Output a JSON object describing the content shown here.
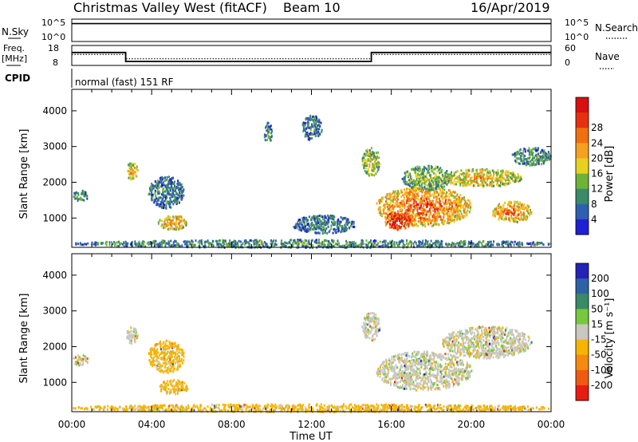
{
  "header": {
    "station": "Christmas Valley West (fitACF)",
    "beam": "Beam 10",
    "date": "16/Apr/2019"
  },
  "param_panels": {
    "nsky_label": "N.Sky",
    "nsky_ticks": [
      "10^5",
      "10^0"
    ],
    "nsearch_label": "N.Search",
    "nsearch_ticks": [
      "10^5",
      "10^0"
    ],
    "freq_label_1": "Freq.",
    "freq_label_2": "[MHz]",
    "freq_ticks": [
      "18",
      "8"
    ],
    "nave_label": "Nave",
    "nave_ticks": [
      "60",
      "0"
    ],
    "cpid_label": "CPID",
    "cpid_text": "normal (fast) 151 RF"
  },
  "axes": {
    "ylabel": "Slant Range [km]",
    "yticks": [
      "1000",
      "2000",
      "3000",
      "4000"
    ],
    "xticks": [
      "00:00",
      "04:00",
      "08:00",
      "12:00",
      "16:00",
      "20:00",
      "00:00"
    ],
    "xlabel": "Time UT"
  },
  "colorbars": {
    "power": {
      "label": "Power [dB]",
      "ticks": [
        "4",
        "8",
        "12",
        "16",
        "20",
        "24",
        "28"
      ],
      "colors": [
        "#1f1fd6",
        "#2f5fb0",
        "#3a8a6a",
        "#6fb23a",
        "#e8d020",
        "#f4a020",
        "#f07010",
        "#e83010",
        "#d81010"
      ]
    },
    "velocity": {
      "label": "Velocity [m s⁻¹]",
      "ticks": [
        "200",
        "100",
        "50",
        "15",
        "-15",
        "-50",
        "-100",
        "-200"
      ],
      "colors": [
        "#2323b8",
        "#2e62a6",
        "#3a8a68",
        "#77c83e",
        "#c8c8c0",
        "#f6b400",
        "#f48a10",
        "#f05a10",
        "#e81c10"
      ]
    }
  },
  "chart_data": [
    {
      "type": "line",
      "title": "N.Sky / N.Search",
      "x_range_hours": [
        0,
        24
      ],
      "series": [
        {
          "name": "N.Sky",
          "x": [
            0,
            24
          ],
          "y": [
            10000,
            10000
          ]
        }
      ]
    },
    {
      "type": "line",
      "title": "Freq. / Nave",
      "x_range_hours": [
        0,
        24
      ],
      "series": [
        {
          "name": "Freq. [MHz]",
          "x": [
            0,
            2.7,
            2.7,
            15,
            15,
            24
          ],
          "y": [
            14.5,
            14.5,
            10,
            10,
            14.5,
            14.5
          ]
        },
        {
          "name": "Nave",
          "x": [
            0,
            2.7,
            2.7,
            15,
            15,
            24
          ],
          "y": [
            33,
            33,
            20,
            20,
            33,
            33
          ]
        }
      ]
    },
    {
      "type": "heatmap",
      "title": "Power [dB]",
      "x_range_hours": [
        0,
        24
      ],
      "ylim": [
        180,
        4600
      ],
      "grid": false,
      "scatter_regions": [
        {
          "t": [
            0.0,
            0.8
          ],
          "r": [
            1500,
            1800
          ],
          "level": 0.3
        },
        {
          "t": [
            2.7,
            3.3
          ],
          "r": [
            2100,
            2600
          ],
          "level": 0.55
        },
        {
          "t": [
            3.8,
            5.6
          ],
          "r": [
            1300,
            2200
          ],
          "level": 0.25
        },
        {
          "t": [
            4.3,
            5.8
          ],
          "r": [
            700,
            1100
          ],
          "level": 0.6
        },
        {
          "t": [
            9.6,
            10.0
          ],
          "r": [
            3100,
            3700
          ],
          "level": 0.3
        },
        {
          "t": [
            11.5,
            12.5
          ],
          "r": [
            3200,
            3900
          ],
          "level": 0.25
        },
        {
          "t": [
            11.0,
            14.2
          ],
          "r": [
            600,
            1100
          ],
          "level": 0.25
        },
        {
          "t": [
            14.5,
            15.4
          ],
          "r": [
            2200,
            3000
          ],
          "level": 0.45
        },
        {
          "t": [
            15.2,
            20.0
          ],
          "r": [
            800,
            1900
          ],
          "level": 0.7
        },
        {
          "t": [
            15.6,
            17.0
          ],
          "r": [
            700,
            1200
          ],
          "level": 0.95
        },
        {
          "t": [
            16.5,
            19.0
          ],
          "r": [
            1800,
            2500
          ],
          "level": 0.4
        },
        {
          "t": [
            18.5,
            22.5
          ],
          "r": [
            1900,
            2400
          ],
          "level": 0.55
        },
        {
          "t": [
            22.0,
            24.0
          ],
          "r": [
            2500,
            3000
          ],
          "level": 0.3
        },
        {
          "t": [
            21.0,
            23.0
          ],
          "r": [
            900,
            1500
          ],
          "level": 0.65
        },
        {
          "t": [
            0.0,
            24.0
          ],
          "r": [
            200,
            420
          ],
          "level": 0.3
        }
      ]
    },
    {
      "type": "heatmap",
      "title": "Velocity [m s⁻¹]",
      "x_range_hours": [
        0,
        24
      ],
      "ylim": [
        180,
        4600
      ],
      "grid": false,
      "scatter_regions": [
        {
          "t": [
            0.0,
            0.8
          ],
          "r": [
            1500,
            1800
          ],
          "velocity": 0
        },
        {
          "t": [
            2.7,
            3.3
          ],
          "r": [
            2100,
            2600
          ],
          "velocity": 0
        },
        {
          "t": [
            3.8,
            5.6
          ],
          "r": [
            1300,
            2200
          ],
          "velocity": -30
        },
        {
          "t": [
            4.3,
            5.8
          ],
          "r": [
            700,
            1100
          ],
          "velocity": -30
        },
        {
          "t": [
            14.5,
            15.4
          ],
          "r": [
            2200,
            3000
          ],
          "velocity": 0
        },
        {
          "t": [
            15.2,
            20.0
          ],
          "r": [
            800,
            1900
          ],
          "velocity": 0
        },
        {
          "t": [
            18.5,
            23.0
          ],
          "r": [
            1700,
            2600
          ],
          "velocity": 0
        },
        {
          "t": [
            0.0,
            24.0
          ],
          "r": [
            200,
            420
          ],
          "velocity": -30
        }
      ]
    }
  ]
}
